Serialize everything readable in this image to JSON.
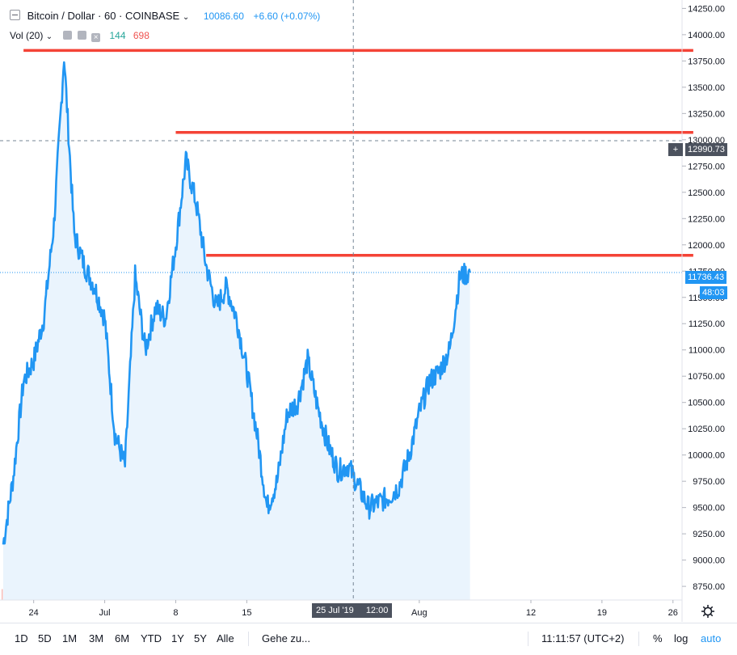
{
  "header": {
    "symbol_title": "Bitcoin / Dollar · 60 · COINBASE",
    "price": "10086.60",
    "change": "+6.60 (+0.07%)",
    "volume_label": "Vol (20)",
    "vol_a": "144",
    "vol_b": "698"
  },
  "price_tags": {
    "crosshair_price": "12990.73",
    "last_price": "11736.43",
    "countdown": "48:03"
  },
  "crosshair_time": {
    "date": "25 Jul '19",
    "time": "12:00"
  },
  "bottom_toolbar": {
    "ranges": [
      "1D",
      "5D",
      "1M",
      "3M",
      "6M",
      "YTD",
      "1Y",
      "5Y",
      "Alle"
    ],
    "goto": "Gehe zu...",
    "clock": "11:11:57 (UTC+2)",
    "percent": "%",
    "log": "log",
    "auto": "auto"
  },
  "colors": {
    "line": "#2196f3",
    "fill": "#eaf4fd",
    "level_lines": "#f44336",
    "vol_up": "#82c9b6",
    "vol_down": "#f0a09b",
    "tag_dark": "#4c525e",
    "tag_blue": "#2196f3"
  },
  "chart_data": {
    "type": "line",
    "symbol": "Bitcoin / Dollar",
    "interval": "60",
    "exchange": "COINBASE",
    "x_tick_labels": [
      "24",
      "Jul",
      "8",
      "15",
      "Aug",
      "12",
      "19",
      "26"
    ],
    "x": [
      "06-21",
      "06-22",
      "06-23",
      "06-24",
      "06-25",
      "06-26",
      "06-27",
      "06-28",
      "06-29",
      "06-30",
      "07-01",
      "07-02",
      "07-03",
      "07-04",
      "07-05",
      "07-06",
      "07-07",
      "07-08",
      "07-09",
      "07-10",
      "07-11",
      "07-12",
      "07-13",
      "07-14",
      "07-15",
      "07-16",
      "07-17",
      "07-18",
      "07-19",
      "07-20",
      "07-21",
      "07-22",
      "07-23",
      "07-24",
      "07-25",
      "07-26",
      "07-27",
      "07-28",
      "07-29",
      "07-30",
      "07-31",
      "08-01",
      "08-02",
      "08-03",
      "08-04",
      "08-05",
      "08-06"
    ],
    "y_ticks": [
      8750,
      9000,
      9250,
      9500,
      9750,
      10000,
      10250,
      10500,
      10750,
      11000,
      11250,
      11500,
      11750,
      12000,
      12250,
      12500,
      12750,
      13000,
      13250,
      13500,
      13750,
      14000,
      14250
    ],
    "ylim": [
      8620,
      14330
    ],
    "grid": false,
    "series": [
      {
        "values": [
          9150,
          9800,
          10700,
          10900,
          11300,
          12200,
          13800,
          12100,
          11800,
          11600,
          11300,
          10200,
          9900,
          11700,
          11000,
          11400,
          11300,
          12000,
          12800,
          12400,
          11800,
          11400,
          11600,
          11300,
          10800,
          10200,
          9500,
          9750,
          10400,
          10500,
          10900,
          10450,
          10100,
          9850,
          9900,
          9700,
          9500,
          9550,
          9600,
          9700,
          10000,
          10400,
          10700,
          10800,
          11000,
          11700,
          11736
        ]
      }
    ],
    "level_lines": [
      {
        "value": 13850,
        "from": "06-23",
        "to": "08-28"
      },
      {
        "value": 13070,
        "from": "07-08",
        "to": "08-28"
      },
      {
        "value": 11900,
        "from": "07-11",
        "to": "08-28"
      }
    ],
    "crosshair_price": 12990.73,
    "last_price": 11736.43
  }
}
